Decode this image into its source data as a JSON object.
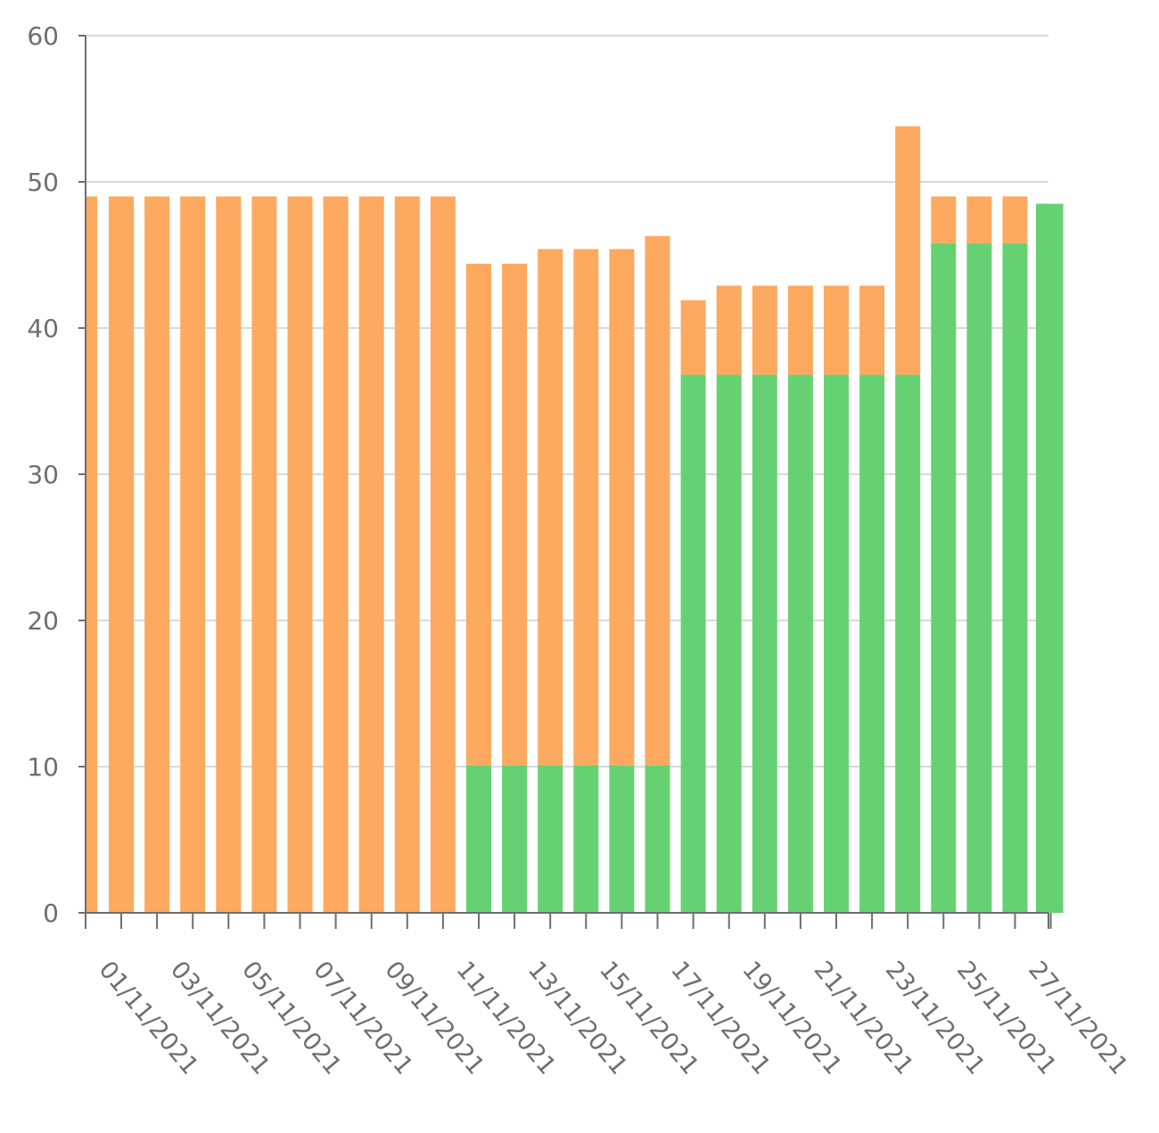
{
  "chart_data": {
    "type": "bar",
    "stacked": true,
    "categories": [
      "01/11/2021",
      "02/11/2021",
      "03/11/2021",
      "04/11/2021",
      "05/11/2021",
      "06/11/2021",
      "07/11/2021",
      "08/11/2021",
      "09/11/2021",
      "10/11/2021",
      "11/11/2021",
      "12/11/2021",
      "13/11/2021",
      "14/11/2021",
      "15/11/2021",
      "16/11/2021",
      "17/11/2021",
      "18/11/2021",
      "19/11/2021",
      "20/11/2021",
      "21/11/2021",
      "22/11/2021",
      "23/11/2021",
      "24/11/2021",
      "25/11/2021",
      "26/11/2021",
      "27/11/2021"
    ],
    "x_tick_labels": [
      "01/11/2021",
      "",
      "03/11/2021",
      "",
      "05/11/2021",
      "",
      "07/11/2021",
      "",
      "09/11/2021",
      "",
      "11/11/2021",
      "",
      "13/11/2021",
      "",
      "15/11/2021",
      "",
      "17/11/2021",
      "",
      "19/11/2021",
      "",
      "21/11/2021",
      "",
      "23/11/2021",
      "",
      "25/11/2021",
      "",
      "27/11/2021"
    ],
    "series": [
      {
        "color": "#66d173",
        "values": [
          0,
          0,
          0,
          0,
          0,
          0,
          0,
          0,
          0,
          0,
          10.1,
          10.1,
          10.1,
          10.1,
          10.1,
          10.1,
          36.8,
          36.8,
          36.8,
          36.8,
          36.8,
          36.8,
          36.8,
          45.8,
          45.8,
          45.8,
          48.5
        ]
      },
      {
        "color": "#fda95f",
        "values": [
          49,
          49,
          49,
          49,
          49,
          49,
          49,
          49,
          49,
          49,
          34.3,
          34.3,
          35.3,
          35.3,
          35.3,
          36.2,
          5.1,
          6.1,
          6.1,
          6.1,
          6.1,
          6.1,
          17.0,
          3.2,
          3.2,
          3.2,
          0
        ]
      }
    ],
    "leading_partial": {
      "value": 49,
      "color": "#fda95f"
    },
    "trailing_partial": {
      "value": 48.5,
      "color": "#66d173"
    },
    "y_ticks": [
      0,
      10,
      20,
      30,
      40,
      50,
      60
    ],
    "ylim": [
      0,
      60
    ],
    "grid": true,
    "legend": "none"
  }
}
